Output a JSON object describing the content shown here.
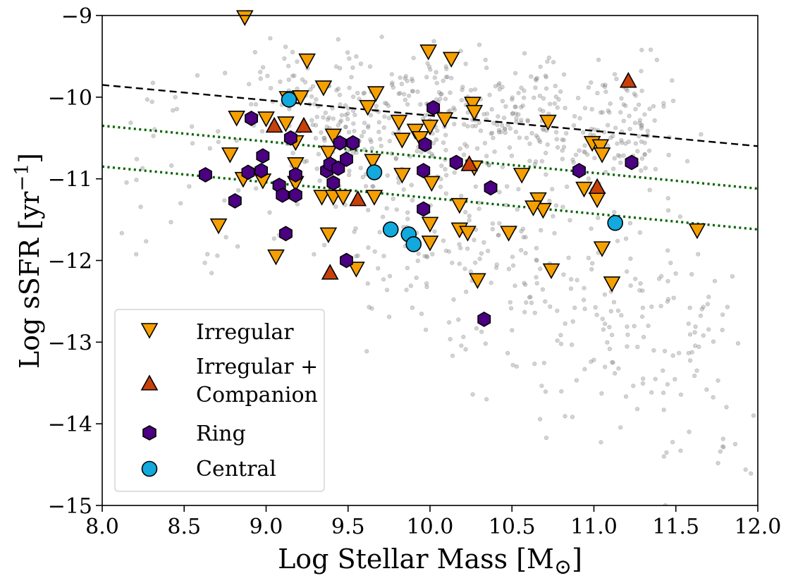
{
  "chart_data": {
    "type": "scatter",
    "xlabel": "Log Stellar Mass [M",
    "xlabel_subscript": "⊙",
    "xlabel_close": "]",
    "ylabel": "Log sSFR [yr",
    "ylabel_superscript": "−1",
    "ylabel_close": "]",
    "xlim": [
      8.0,
      12.0
    ],
    "ylim": [
      -15,
      -9
    ],
    "xticks": [
      8.0,
      8.5,
      9.0,
      9.5,
      10.0,
      10.5,
      11.0,
      11.5,
      12.0
    ],
    "xtick_labels": [
      "8.0",
      "8.5",
      "9.0",
      "9.5",
      "10.0",
      "10.5",
      "11.0",
      "11.5",
      "12.0"
    ],
    "yticks": [
      -15,
      -14,
      -13,
      -12,
      -11,
      -10,
      -9
    ],
    "ytick_labels": [
      "−15",
      "−14",
      "−13",
      "−12",
      "−11",
      "−10",
      "−9"
    ],
    "legend_position": "lower-left",
    "colors": {
      "irregular": "#f5a000",
      "irregular_companion": "#c8400a",
      "ring": "#4b0082",
      "central": "#12a9dc",
      "background": "#808080",
      "main_sequence": "#000000",
      "boundaries": "#006400"
    },
    "lines": [
      {
        "name": "main sequence",
        "style": "dashed",
        "color": "#000000",
        "x": [
          8.0,
          12.0
        ],
        "y": [
          -9.85,
          -10.6
        ]
      },
      {
        "name": "upper boundary",
        "style": "dotted",
        "color": "#006400",
        "x": [
          8.0,
          12.0
        ],
        "y": [
          -10.35,
          -11.12
        ]
      },
      {
        "name": "lower boundary",
        "style": "dotted",
        "color": "#006400",
        "x": [
          8.0,
          12.0
        ],
        "y": [
          -10.85,
          -11.62
        ]
      }
    ],
    "background_cloud": {
      "description": "field galaxies",
      "approx_count": 900
    },
    "series": [
      {
        "name": "Irregular",
        "marker": "triangle-down",
        "color": "#f5a000",
        "points": [
          [
            8.87,
            -9.02
          ],
          [
            9.13,
            -10.01
          ],
          [
            9.21,
            -10.0
          ],
          [
            9.25,
            -9.55
          ],
          [
            9.35,
            -9.88
          ],
          [
            9.41,
            -10.47
          ],
          [
            9.67,
            -9.95
          ],
          [
            9.62,
            -10.12
          ],
          [
            9.99,
            -9.44
          ],
          [
            10.13,
            -9.53
          ],
          [
            10.26,
            -10.08
          ],
          [
            10.27,
            -10.18
          ],
          [
            8.82,
            -10.25
          ],
          [
            9.0,
            -10.26
          ],
          [
            9.12,
            -10.32
          ],
          [
            9.18,
            -10.55
          ],
          [
            9.38,
            -10.68
          ],
          [
            9.65,
            -10.78
          ],
          [
            9.81,
            -10.3
          ],
          [
            9.83,
            -10.52
          ],
          [
            9.91,
            -10.41
          ],
          [
            9.94,
            -10.5
          ],
          [
            10.0,
            -10.36
          ],
          [
            10.09,
            -10.27
          ],
          [
            10.27,
            -10.86
          ],
          [
            10.72,
            -10.3
          ],
          [
            10.99,
            -10.56
          ],
          [
            11.04,
            -10.6
          ],
          [
            11.05,
            -10.7
          ],
          [
            8.78,
            -10.7
          ],
          [
            8.86,
            -11.0
          ],
          [
            8.98,
            -11.02
          ],
          [
            9.18,
            -11.05
          ],
          [
            9.18,
            -10.82
          ],
          [
            9.34,
            -11.22
          ],
          [
            9.41,
            -11.22
          ],
          [
            9.47,
            -11.22
          ],
          [
            9.66,
            -11.22
          ],
          [
            9.83,
            -10.95
          ],
          [
            10.01,
            -11.05
          ],
          [
            10.18,
            -11.32
          ],
          [
            10.56,
            -10.95
          ],
          [
            10.66,
            -11.25
          ],
          [
            10.69,
            -11.38
          ],
          [
            10.94,
            -11.12
          ],
          [
            11.02,
            -11.25
          ],
          [
            8.71,
            -11.57
          ],
          [
            9.06,
            -11.95
          ],
          [
            9.38,
            -11.68
          ],
          [
            9.55,
            -12.1
          ],
          [
            10.0,
            -11.55
          ],
          [
            10.0,
            -11.78
          ],
          [
            10.18,
            -11.62
          ],
          [
            10.23,
            -11.66
          ],
          [
            10.48,
            -11.66
          ],
          [
            10.63,
            -11.35
          ],
          [
            10.74,
            -12.12
          ],
          [
            10.29,
            -12.24
          ],
          [
            11.05,
            -11.85
          ],
          [
            11.11,
            -12.28
          ],
          [
            11.63,
            -11.63
          ]
        ]
      },
      {
        "name": "Irregular + Companion",
        "marker": "triangle-up",
        "color": "#c8400a",
        "points": [
          [
            9.05,
            -10.35
          ],
          [
            9.23,
            -10.35
          ],
          [
            9.39,
            -12.15
          ],
          [
            9.56,
            -11.25
          ],
          [
            10.24,
            -10.82
          ],
          [
            11.02,
            -11.1
          ],
          [
            11.21,
            -9.8
          ]
        ]
      },
      {
        "name": "Ring",
        "marker": "hexagon",
        "color": "#4b0082",
        "points": [
          [
            8.63,
            -10.95
          ],
          [
            8.81,
            -11.27
          ],
          [
            8.91,
            -10.26
          ],
          [
            8.98,
            -10.72
          ],
          [
            8.97,
            -10.9
          ],
          [
            8.89,
            -10.92
          ],
          [
            9.08,
            -11.08
          ],
          [
            9.1,
            -11.2
          ],
          [
            9.12,
            -11.67
          ],
          [
            9.15,
            -10.5
          ],
          [
            9.18,
            -10.95
          ],
          [
            9.18,
            -11.2
          ],
          [
            9.37,
            -10.9
          ],
          [
            9.39,
            -10.82
          ],
          [
            9.41,
            -11.05
          ],
          [
            9.45,
            -10.56
          ],
          [
            9.44,
            -10.87
          ],
          [
            9.49,
            -10.76
          ],
          [
            9.53,
            -10.56
          ],
          [
            9.49,
            -12.0
          ],
          [
            9.97,
            -10.58
          ],
          [
            9.96,
            -10.9
          ],
          [
            9.96,
            -11.37
          ],
          [
            10.02,
            -10.13
          ],
          [
            10.16,
            -10.8
          ],
          [
            10.37,
            -11.11
          ],
          [
            10.33,
            -12.72
          ],
          [
            10.91,
            -10.9
          ],
          [
            11.23,
            -10.8
          ]
        ]
      },
      {
        "name": "Central",
        "marker": "circle",
        "color": "#12a9dc",
        "points": [
          [
            9.14,
            -10.03
          ],
          [
            9.66,
            -10.92
          ],
          [
            9.76,
            -11.62
          ],
          [
            9.87,
            -11.68
          ],
          [
            9.9,
            -11.8
          ],
          [
            11.13,
            -11.54
          ]
        ]
      }
    ],
    "legend": [
      {
        "label": "Irregular",
        "marker": "triangle-down",
        "color": "#f5a000"
      },
      {
        "label_lines": [
          "Irregular +",
          "Companion"
        ],
        "marker": "triangle-up",
        "color": "#c8400a"
      },
      {
        "label": "Ring",
        "marker": "hexagon",
        "color": "#4b0082"
      },
      {
        "label": "Central",
        "marker": "circle",
        "color": "#12a9dc"
      }
    ]
  }
}
